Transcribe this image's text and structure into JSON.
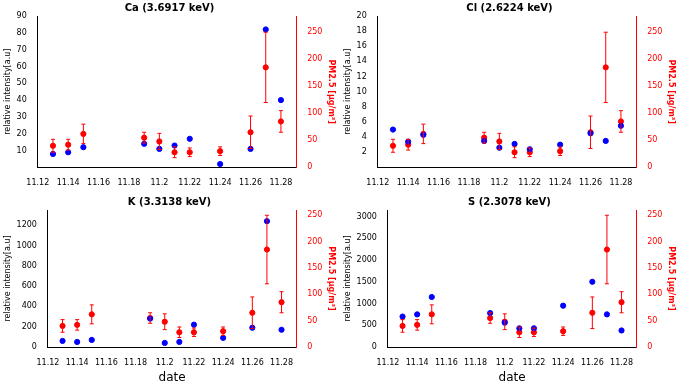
{
  "chart_data": [
    {
      "type": "scatter",
      "title": "Ca (3.6917 keV)",
      "y_label": "relative intensity[a.u]",
      "y2_label": "PM2.5 [μg/m³]",
      "grid": false,
      "x": [
        11.13,
        11.14,
        11.15,
        11.19,
        11.2,
        11.21,
        11.22,
        11.24,
        11.26,
        11.27,
        11.28
      ],
      "xlim": [
        11.12,
        11.29
      ],
      "xticks": [
        11.12,
        11.14,
        11.16,
        11.18,
        11.2,
        11.22,
        11.24,
        11.26,
        11.28
      ],
      "ylim": [
        0,
        90
      ],
      "yticks": [
        10,
        20,
        30,
        40,
        50,
        60,
        70,
        80,
        90
      ],
      "y2lim": [
        0,
        280
      ],
      "y2ticks": [
        0,
        50,
        100,
        150,
        200,
        250
      ],
      "series": [
        {
          "color": "#0000ff",
          "marker": "circle",
          "values": [
            8,
            9,
            12,
            14,
            11,
            13,
            17,
            2,
            11,
            82,
            40
          ]
        },
        {
          "color": "#ff0000",
          "marker": "circle",
          "axis": "y2",
          "values": [
            40,
            42,
            62,
            55,
            48,
            28,
            28,
            30,
            65,
            185,
            85
          ],
          "errors": [
            12,
            10,
            18,
            10,
            15,
            10,
            8,
            8,
            30,
            65,
            20
          ]
        }
      ]
    },
    {
      "type": "scatter",
      "title": "Cl (2.6224 keV)",
      "y_label": "relative intensity[a.u]",
      "y2_label": "PM2.5 [μg/m³]",
      "grid": false,
      "x": [
        11.13,
        11.14,
        11.15,
        11.19,
        11.2,
        11.21,
        11.22,
        11.24,
        11.26,
        11.27,
        11.28
      ],
      "xlim": [
        11.12,
        11.29
      ],
      "xticks": [
        11.12,
        11.14,
        11.16,
        11.18,
        11.2,
        11.22,
        11.24,
        11.26,
        11.28
      ],
      "ylim": [
        0,
        20
      ],
      "yticks": [
        2,
        4,
        6,
        8,
        10,
        12,
        14,
        16,
        18,
        20
      ],
      "y2lim": [
        0,
        280
      ],
      "y2ticks": [
        0,
        50,
        100,
        150,
        200,
        250
      ],
      "series": [
        {
          "color": "#0000ff",
          "marker": "circle",
          "values": [
            5.0,
            3.4,
            4.3,
            3.5,
            2.6,
            3.1,
            2.4,
            3.0,
            4.5,
            3.5,
            5.5
          ]
        },
        {
          "color": "#ff0000",
          "marker": "circle",
          "axis": "y2",
          "values": [
            40,
            42,
            62,
            55,
            48,
            28,
            28,
            30,
            65,
            185,
            85
          ],
          "errors": [
            12,
            10,
            18,
            10,
            15,
            10,
            8,
            8,
            30,
            65,
            20
          ]
        }
      ]
    },
    {
      "type": "scatter",
      "title": "K (3.3138 keV)",
      "x_label": "date",
      "y_label": "relative intensity[a.u]",
      "y2_label": "PM2.5 [μg/m³]",
      "grid": false,
      "x": [
        11.13,
        11.14,
        11.15,
        11.19,
        11.2,
        11.21,
        11.22,
        11.24,
        11.26,
        11.27,
        11.28
      ],
      "xlim": [
        11.12,
        11.29
      ],
      "xticks": [
        11.12,
        11.14,
        11.16,
        11.18,
        11.2,
        11.22,
        11.24,
        11.26,
        11.28
      ],
      "ylim": [
        0,
        1350
      ],
      "yticks": [
        0,
        200,
        400,
        600,
        800,
        1000,
        1200
      ],
      "y2lim": [
        0,
        260
      ],
      "y2ticks": [
        0,
        50,
        100,
        150,
        200,
        250
      ],
      "series": [
        {
          "color": "#0000ff",
          "marker": "circle",
          "values": [
            60,
            50,
            70,
            280,
            40,
            50,
            220,
            90,
            190,
            1240,
            170
          ]
        },
        {
          "color": "#ff0000",
          "marker": "circle",
          "axis": "y2",
          "values": [
            40,
            42,
            62,
            55,
            48,
            28,
            28,
            30,
            65,
            185,
            85
          ],
          "errors": [
            12,
            10,
            18,
            10,
            15,
            10,
            8,
            8,
            30,
            65,
            20
          ]
        }
      ]
    },
    {
      "type": "scatter",
      "title": "S (2.3078 keV)",
      "x_label": "date",
      "y_label": "relative intensity[a.u]",
      "y2_label": "PM2.5 [μg/m³]",
      "grid": false,
      "x": [
        11.13,
        11.14,
        11.15,
        11.19,
        11.2,
        11.21,
        11.22,
        11.24,
        11.26,
        11.27,
        11.28
      ],
      "xlim": [
        11.12,
        11.29
      ],
      "xticks": [
        11.12,
        11.14,
        11.16,
        11.18,
        11.2,
        11.22,
        11.24,
        11.26,
        11.28
      ],
      "ylim": [
        0,
        3150
      ],
      "yticks": [
        0,
        500,
        1000,
        1500,
        2000,
        2500,
        3000
      ],
      "y2lim": [
        0,
        260
      ],
      "y2ticks": [
        0,
        50,
        100,
        150,
        200,
        250
      ],
      "series": [
        {
          "color": "#0000ff",
          "marker": "circle",
          "values": [
            700,
            750,
            1150,
            780,
            560,
            430,
            430,
            950,
            1500,
            750,
            380
          ]
        },
        {
          "color": "#ff0000",
          "marker": "circle",
          "axis": "y2",
          "values": [
            40,
            42,
            62,
            55,
            48,
            28,
            28,
            30,
            65,
            185,
            85
          ],
          "errors": [
            12,
            10,
            18,
            10,
            15,
            10,
            8,
            8,
            30,
            65,
            20
          ]
        }
      ]
    }
  ]
}
